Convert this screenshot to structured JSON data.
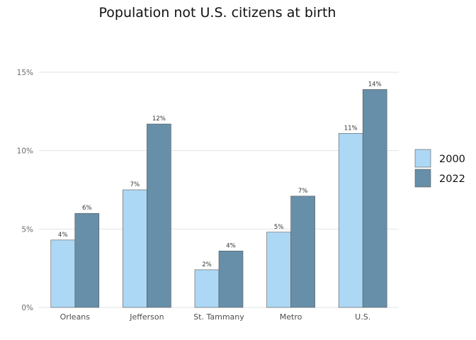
{
  "chart_data": {
    "type": "bar",
    "title": "Population not U.S. citizens at birth",
    "xlabel": "",
    "ylabel": "",
    "categories": [
      "Orleans",
      "Jefferson",
      "St. Tammany",
      "Metro",
      "U.S."
    ],
    "series": [
      {
        "name": "2000",
        "values": [
          4.3,
          7.5,
          2.4,
          4.8,
          11.1
        ],
        "labels": [
          "4%",
          "7%",
          "2%",
          "5%",
          "11%"
        ],
        "color": "#add8f5"
      },
      {
        "name": "2022",
        "values": [
          6.0,
          11.7,
          3.6,
          7.1,
          13.9
        ],
        "labels": [
          "6%",
          "12%",
          "4%",
          "7%",
          "14%"
        ],
        "color": "#678fa9"
      }
    ],
    "ylim": [
      0,
      15
    ],
    "yticks": [
      0,
      5,
      10,
      15
    ],
    "ytick_labels": [
      "0%",
      "5%",
      "10%",
      "15%"
    ],
    "grid": true,
    "legend": "right"
  }
}
